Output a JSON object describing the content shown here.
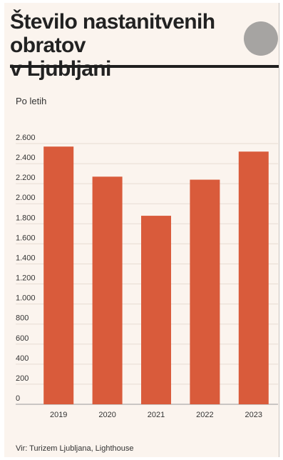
{
  "header": {
    "title": "Število nastanitvenih obratov\nv Ljubljani",
    "subtitle": "Po letih"
  },
  "footer": {
    "source": "Vir: Turizem Ljubljana, Lighthouse"
  },
  "colors": {
    "bar": "#d95b3b",
    "grid": "#e7dcd3",
    "axis": "#999999"
  },
  "chart_data": {
    "type": "bar",
    "title": "Število nastanitvenih obratov v Ljubljani",
    "subtitle": "Po letih",
    "categories": [
      "2019",
      "2020",
      "2021",
      "2022",
      "2023"
    ],
    "values": [
      2570,
      2270,
      1880,
      2240,
      2520
    ],
    "ylim": [
      0,
      2600
    ],
    "yticks": [
      0,
      200,
      400,
      600,
      800,
      1000,
      1200,
      1400,
      1600,
      1800,
      2000,
      2200,
      2400,
      2600
    ],
    "ytick_labels": [
      "0",
      "200",
      "400",
      "600",
      "800",
      "1.000",
      "1.200",
      "1.400",
      "1.600",
      "1.800",
      "2.000",
      "2.200",
      "2.400",
      "2.600"
    ],
    "xlabel": "",
    "ylabel": "",
    "grid": true,
    "legend": false
  }
}
